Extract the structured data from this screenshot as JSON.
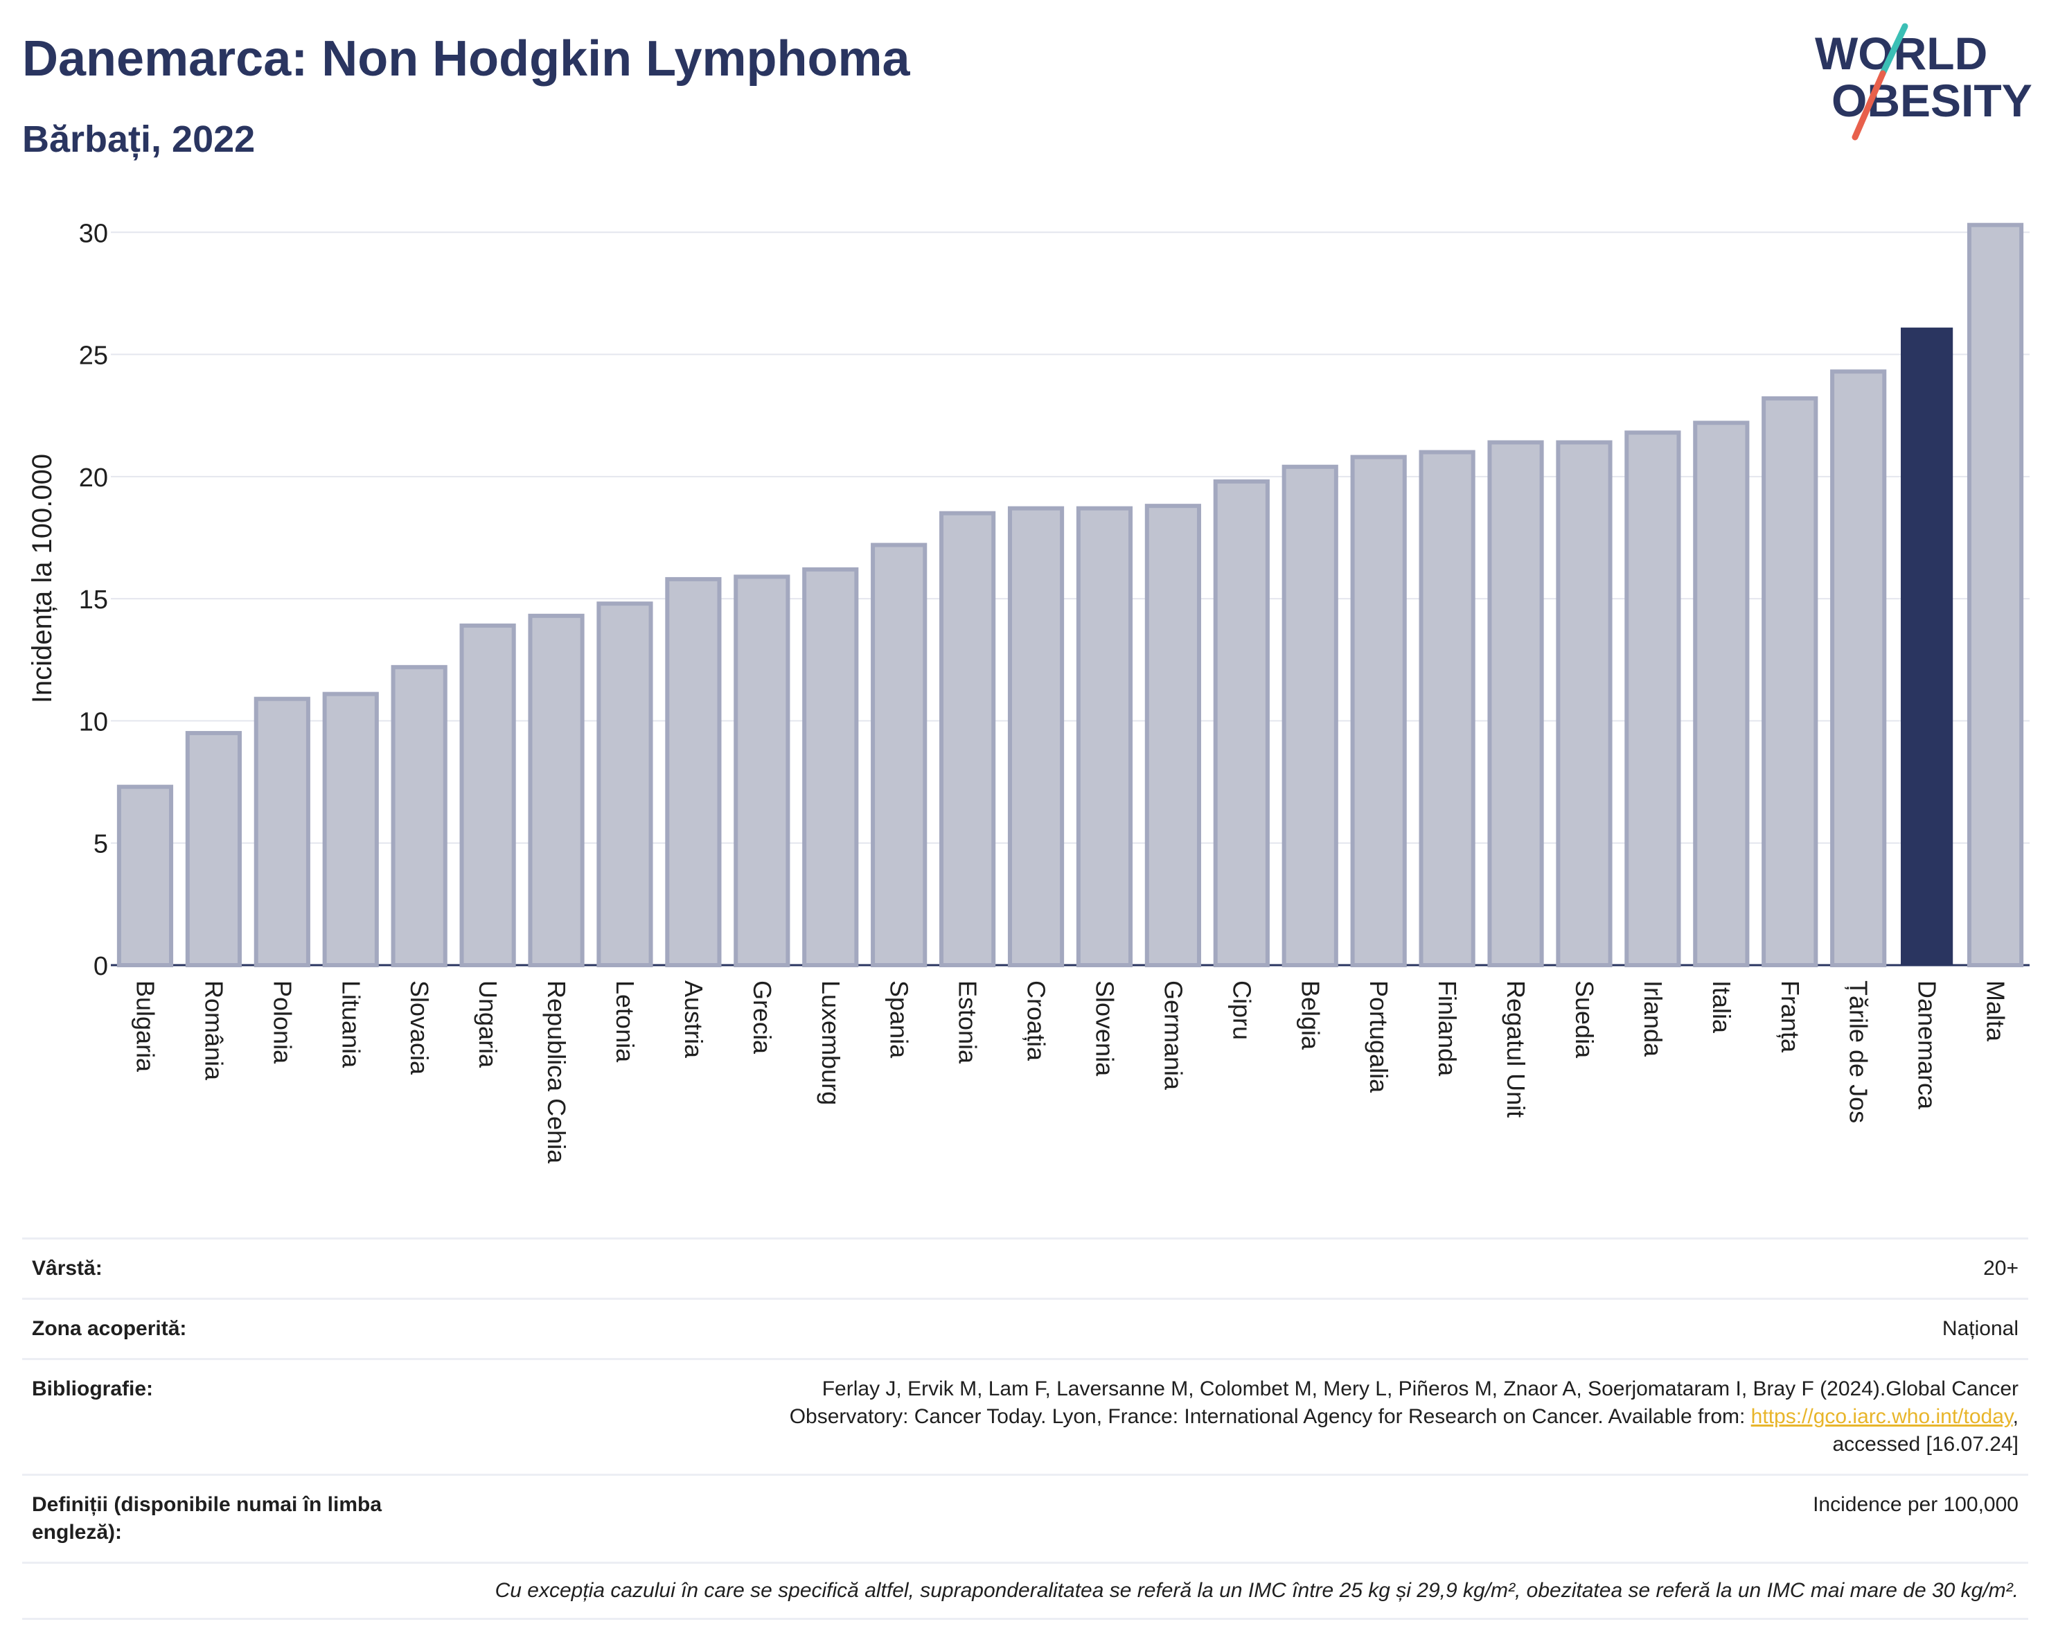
{
  "header": {
    "title": "Danemarca: Non Hodgkin Lymphoma",
    "subtitle": "Bărbați, 2022"
  },
  "logo": {
    "line1": "WORLD",
    "line2": "OBESITY"
  },
  "chart_data": {
    "type": "bar",
    "title": "Danemarca: Non Hodgkin Lymphoma",
    "subtitle": "Bărbați, 2022",
    "ylabel": "Incidența la 100.000",
    "xlabel": "",
    "ylim": [
      0,
      31
    ],
    "yticks": [
      0,
      5,
      10,
      15,
      20,
      25,
      30
    ],
    "grid": true,
    "highlight": "Danemarca",
    "colors": {
      "bar": "#c0c3d0",
      "bar_edge": "#a3a8bf",
      "highlight": "#2a3560"
    },
    "categories": [
      "Bulgaria",
      "România",
      "Polonia",
      "Lituania",
      "Slovacia",
      "Ungaria",
      "Republica Cehia",
      "Letonia",
      "Austria",
      "Grecia",
      "Luxemburg",
      "Spania",
      "Estonia",
      "Croația",
      "Slovenia",
      "Germania",
      "Cipru",
      "Belgia",
      "Portugalia",
      "Finlanda",
      "Regatul Unit",
      "Suedia",
      "Irlanda",
      "Italia",
      "Franța",
      "Țările de Jos",
      "Danemarca",
      "Malta"
    ],
    "values": [
      7.3,
      9.5,
      10.9,
      11.1,
      12.2,
      13.9,
      14.3,
      14.8,
      15.8,
      15.9,
      16.2,
      17.2,
      18.5,
      18.7,
      18.7,
      18.8,
      19.8,
      20.4,
      20.8,
      21.0,
      21.4,
      21.4,
      21.8,
      22.2,
      23.2,
      24.3,
      26.1,
      30.3
    ]
  },
  "info": {
    "age_label": "Vârstă:",
    "age_value": "20+",
    "area_label": "Zona acoperită:",
    "area_value": "Național",
    "bib_label": "Bibliografie:",
    "bib_text_1": "Ferlay J, Ervik M, Lam F, Laversanne M, Colombet M, Mery L, Piñeros M, Znaor A, Soerjomataram I, Bray F (2024).Global Cancer",
    "bib_text_2": "Observatory: Cancer Today. Lyon, France: International Agency for Research on Cancer. Available from: ",
    "bib_link": "https://gco.iarc.who.int/today",
    "bib_text_3": ",",
    "bib_text_4": "accessed [16.07.24]",
    "def_label": "Definiții (disponibile numai în limba engleză):",
    "def_value": "Incidence per 100,000",
    "note": "Cu excepția cazului în care se specifică altfel, supraponderalitatea se referă la un IMC între 25 kg și 29,9 kg/m², obezitatea se referă la un IMC mai mare de 30 kg/m²."
  }
}
